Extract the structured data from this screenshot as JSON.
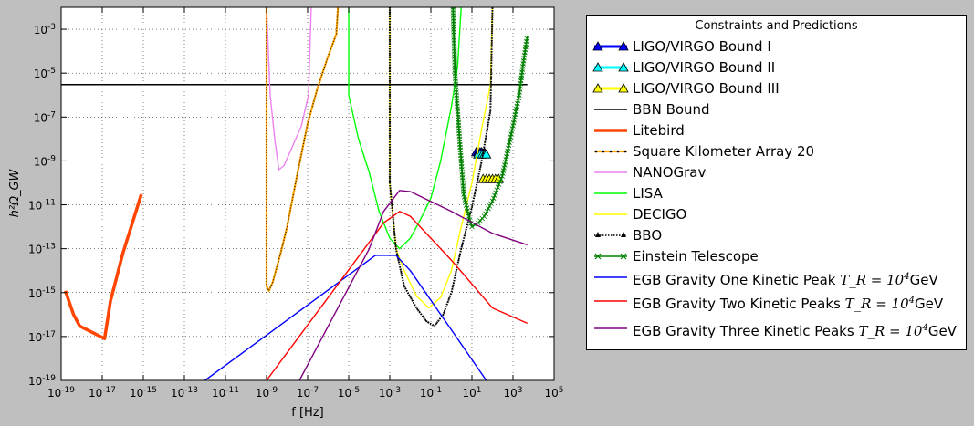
{
  "chart_data": {
    "type": "line",
    "xscale": "log",
    "yscale": "log",
    "xlim": [
      1e-19,
      100000.0
    ],
    "ylim": [
      1e-19,
      0.01
    ],
    "xlabel": "f [Hz]",
    "ylabel": "h²Ω_GW",
    "grid": true,
    "x_ticks": [
      {
        "exp": -19,
        "label": "10-19"
      },
      {
        "exp": -17,
        "label": "10-17"
      },
      {
        "exp": -15,
        "label": "10-15"
      },
      {
        "exp": -13,
        "label": "10-13"
      },
      {
        "exp": -11,
        "label": "10-11"
      },
      {
        "exp": -9,
        "label": "10-9"
      },
      {
        "exp": -7,
        "label": "10-7"
      },
      {
        "exp": -5,
        "label": "10-5"
      },
      {
        "exp": -3,
        "label": "10-3"
      },
      {
        "exp": -1,
        "label": "10-1"
      },
      {
        "exp": 1,
        "label": "101"
      },
      {
        "exp": 3,
        "label": "103"
      },
      {
        "exp": 5,
        "label": "105"
      }
    ],
    "y_ticks": [
      {
        "exp": -19,
        "label": "10-19"
      },
      {
        "exp": -17,
        "label": "10-17"
      },
      {
        "exp": -15,
        "label": "10-15"
      },
      {
        "exp": -13,
        "label": "10-13"
      },
      {
        "exp": -11,
        "label": "10-11"
      },
      {
        "exp": -9,
        "label": "10-9"
      },
      {
        "exp": -7,
        "label": "10-7"
      },
      {
        "exp": -5,
        "label": "10-5"
      },
      {
        "exp": -3,
        "label": "10-3"
      }
    ],
    "legend": {
      "title": "Constraints and Predictions",
      "placement": "outside-right"
    },
    "series": [
      {
        "name": "LIGO/VIRGO Bound I",
        "color": "#0000ff",
        "style": "triangles",
        "points": [
          [
            16,
            2.5e-09
          ],
          [
            20,
            2.5e-09
          ],
          [
            25,
            2.5e-09
          ],
          [
            30,
            2.5e-09
          ],
          [
            40,
            2.5e-09
          ]
        ]
      },
      {
        "name": "LIGO/VIRGO Bound II",
        "color": "#00ffff",
        "style": "triangles",
        "points": [
          [
            20,
            2e-09
          ],
          [
            25,
            2e-09
          ],
          [
            32,
            2e-09
          ],
          [
            40,
            2e-09
          ],
          [
            50,
            2e-09
          ]
        ]
      },
      {
        "name": "LIGO/VIRGO Bound III",
        "color": "#ffff00",
        "style": "triangles",
        "points": [
          [
            35,
            1.5e-10
          ],
          [
            50,
            1.5e-10
          ],
          [
            70,
            1.5e-10
          ],
          [
            100,
            1.5e-10
          ],
          [
            140,
            1.5e-10
          ],
          [
            200,
            1.5e-10
          ]
        ]
      },
      {
        "name": "BBN Bound",
        "color": "#000000",
        "style": "line",
        "points": [
          [
            1e-19,
            3e-06
          ],
          [
            5000,
            3e-06
          ]
        ]
      },
      {
        "name": "Litebird",
        "color": "#ff4500",
        "style": "thick",
        "points": [
          [
            1.6e-19,
            1.2e-15
          ],
          [
            4e-19,
            1e-16
          ],
          [
            8e-19,
            3e-17
          ],
          [
            1.3e-17,
            8e-18
          ],
          [
            2.5e-17,
            4e-16
          ],
          [
            1e-16,
            6e-14
          ],
          [
            8e-16,
            3e-11
          ]
        ]
      },
      {
        "name": "Square Kilometer Array 20",
        "color": "#ffa500",
        "style": "dotted-thick",
        "points": [
          [
            1e-09,
            0.01
          ],
          [
            1e-09,
            2e-15
          ],
          [
            1.3e-09,
            1.2e-15
          ],
          [
            2e-09,
            3e-15
          ],
          [
            5e-09,
            7e-14
          ],
          [
            1e-08,
            1e-12
          ],
          [
            3e-08,
            2e-10
          ],
          [
            1e-07,
            5e-08
          ],
          [
            3e-07,
            2e-06
          ],
          [
            1e-06,
            6e-05
          ],
          [
            2.5e-06,
            0.0006
          ],
          [
            3e-06,
            0.01
          ]
        ]
      },
      {
        "name": "NANOGrav",
        "color": "#ee82ee",
        "style": "line",
        "points": [
          [
            1e-09,
            0.01
          ],
          [
            1.5e-09,
            1e-06
          ],
          [
            2.5e-09,
            1e-08
          ],
          [
            4e-09,
            4e-10
          ],
          [
            7e-09,
            6e-10
          ],
          [
            1.5e-08,
            3e-09
          ],
          [
            5e-08,
            4e-08
          ],
          [
            1.1e-07,
            1e-06
          ],
          [
            1.5e-07,
            0.01
          ]
        ]
      },
      {
        "name": "LISA",
        "color": "#00ff00",
        "style": "line",
        "points": [
          [
            1e-05,
            0.01
          ],
          [
            1e-05,
            1e-06
          ],
          [
            3e-05,
            1e-08
          ],
          [
            0.0001,
            3e-10
          ],
          [
            0.0003,
            5e-12
          ],
          [
            0.001,
            3e-13
          ],
          [
            0.003,
            1e-13
          ],
          [
            0.01,
            3e-13
          ],
          [
            0.03,
            2e-12
          ],
          [
            0.1,
            2e-11
          ],
          [
            0.3,
            1e-09
          ],
          [
            1,
            3e-07
          ],
          [
            2,
            2e-05
          ],
          [
            3,
            0.01
          ]
        ]
      },
      {
        "name": "DECIGO",
        "color": "#ffff00",
        "style": "line",
        "points": [
          [
            0.001,
            0.01
          ],
          [
            0.001,
            1e-10
          ],
          [
            0.002,
            1e-13
          ],
          [
            0.005,
            1e-14
          ],
          [
            0.02,
            7e-16
          ],
          [
            0.08,
            2e-16
          ],
          [
            0.3,
            6e-16
          ],
          [
            1,
            1e-14
          ],
          [
            3,
            1e-12
          ],
          [
            10,
            1e-10
          ],
          [
            30,
            3e-08
          ],
          [
            80,
            3e-06
          ],
          [
            100,
            0.01
          ]
        ]
      },
      {
        "name": "BBO",
        "color": "#000000",
        "style": "dotted",
        "points": [
          [
            0.001,
            0.01
          ],
          [
            0.001,
            1e-10
          ],
          [
            0.002,
            1e-13
          ],
          [
            0.005,
            2e-15
          ],
          [
            0.02,
            2e-16
          ],
          [
            0.06,
            5e-17
          ],
          [
            0.15,
            3e-17
          ],
          [
            0.4,
            1e-16
          ],
          [
            1,
            1e-15
          ],
          [
            3,
            1e-13
          ],
          [
            10,
            8e-12
          ],
          [
            30,
            1e-09
          ],
          [
            80,
            2e-07
          ],
          [
            100,
            0.01
          ]
        ]
      },
      {
        "name": "Einstein Telescope",
        "color": "#008000",
        "style": "crosses",
        "points": [
          [
            1.2,
            0.01
          ],
          [
            1.5,
            1e-05
          ],
          [
            2.5,
            1e-08
          ],
          [
            4,
            3e-11
          ],
          [
            7,
            3e-12
          ],
          [
            10,
            1e-12
          ],
          [
            20,
            1.5e-12
          ],
          [
            40,
            3e-12
          ],
          [
            100,
            1.5e-11
          ],
          [
            300,
            2e-10
          ],
          [
            1000,
            4e-08
          ],
          [
            2000,
            1e-06
          ],
          [
            3000,
            2e-05
          ],
          [
            5000,
            0.0005
          ]
        ]
      },
      {
        "name": "EGB Gravity One Kinetic Peak $T_R=10^4$GeV",
        "legend_text": "EGB Gravity One Kinetic Peak",
        "legend_math": "T_R = 10^4",
        "legend_unit": "GeV",
        "color": "#0000ff",
        "style": "line",
        "points": [
          [
            1e-12,
            1e-19
          ],
          [
            0.0002,
            5e-14
          ],
          [
            0.002,
            5e-14
          ],
          [
            0.01,
            1e-14
          ],
          [
            1,
            2e-17
          ],
          [
            50,
            1e-19
          ]
        ]
      },
      {
        "name": "EGB Gravity Two Kinetic Peaks $T_R=10^4$GeV",
        "legend_text": "EGB Gravity Two Kinetic Peaks",
        "legend_math": "T_R = 10^4",
        "legend_unit": "GeV",
        "color": "#ff0000",
        "style": "line",
        "points": [
          [
            1e-09,
            1e-19
          ],
          [
            0.0005,
            1.5e-12
          ],
          [
            0.003,
            5e-12
          ],
          [
            0.01,
            3e-12
          ],
          [
            1,
            3e-14
          ],
          [
            100,
            2e-16
          ],
          [
            5000,
            4e-17
          ]
        ]
      },
      {
        "name": "EGB Gravity Three Kinetic Peaks $T_R=10^4$GeV",
        "legend_text": "EGB Gravity Three Kinetic Peaks",
        "legend_math": "T_R = 10^4",
        "legend_unit": "GeV",
        "color": "#800080",
        "style": "line",
        "points": [
          [
            4e-08,
            1e-19
          ],
          [
            0.0001,
            1e-13
          ],
          [
            0.0005,
            5e-12
          ],
          [
            0.003,
            4.5e-11
          ],
          [
            0.01,
            4e-11
          ],
          [
            1,
            5e-12
          ],
          [
            100,
            5e-13
          ],
          [
            5000,
            1.5e-13
          ]
        ]
      }
    ]
  }
}
